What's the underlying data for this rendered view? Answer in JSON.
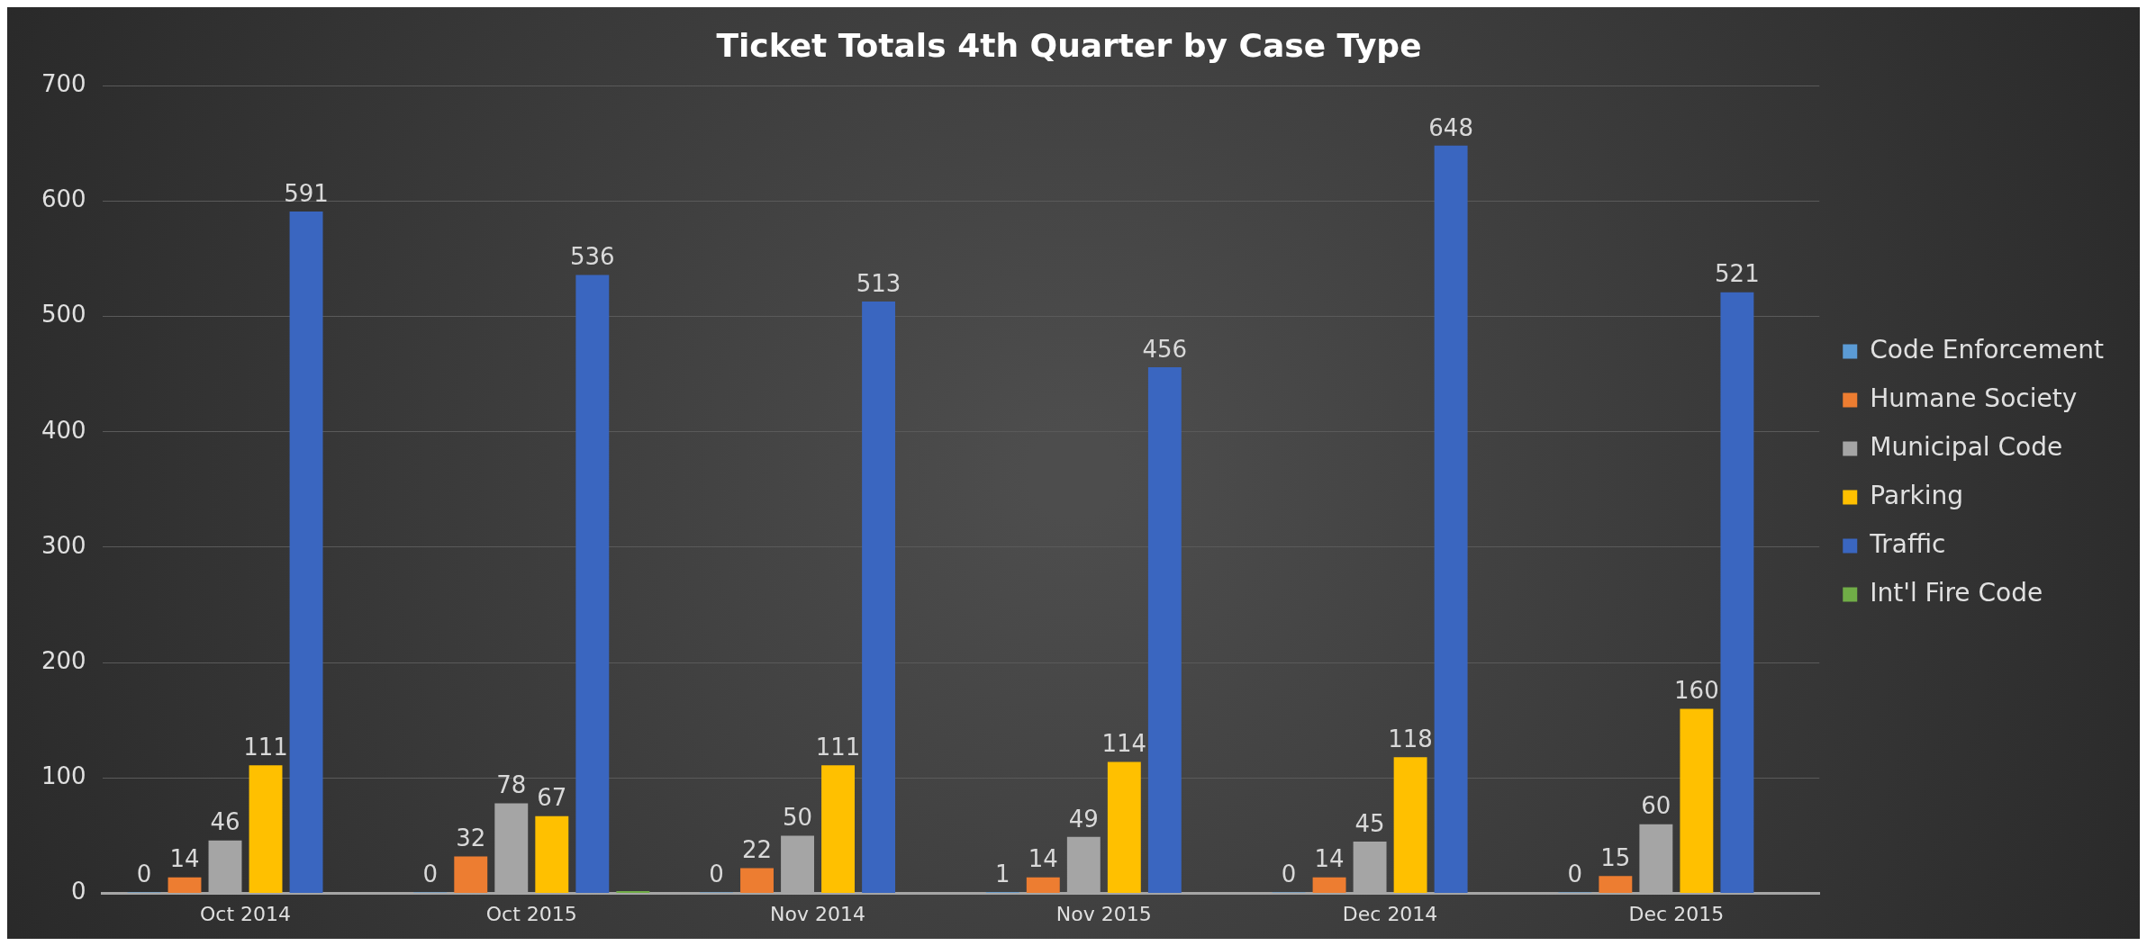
{
  "chart_data": {
    "type": "bar",
    "title": "Ticket Totals 4th Quarter by Case Type",
    "categories": [
      "Oct 2014",
      "Oct 2015",
      "Nov 2014",
      "Nov 2015",
      "Dec 2014",
      "Dec 2015"
    ],
    "series": [
      {
        "name": "Code Enforcement",
        "color": "#5b9bd5",
        "values": [
          0,
          0,
          0,
          1,
          0,
          0
        ],
        "value_labels": [
          "0",
          "0",
          "0",
          "1",
          "0",
          "0"
        ]
      },
      {
        "name": "Humane Society",
        "color": "#ed7d31",
        "values": [
          14,
          32,
          22,
          14,
          14,
          15
        ],
        "value_labels": [
          "14",
          "32",
          "22",
          "14",
          "14",
          "15"
        ]
      },
      {
        "name": "Municipal Code",
        "color": "#a5a5a5",
        "values": [
          46,
          78,
          50,
          49,
          45,
          60
        ],
        "value_labels": [
          "46",
          "78",
          "50",
          "49",
          "45",
          "60"
        ]
      },
      {
        "name": "Parking",
        "color": "#ffc000",
        "values": [
          111,
          67,
          111,
          114,
          118,
          160
        ],
        "value_labels": [
          "111",
          "67",
          "111",
          "114",
          "118",
          "160"
        ]
      },
      {
        "name": "Traffic",
        "color": "#3a66c0",
        "values": [
          591,
          536,
          513,
          456,
          648,
          521
        ],
        "value_labels": [
          "591",
          "536",
          "513",
          "456",
          "648",
          "521"
        ]
      },
      {
        "name": "Int'l Fire Code",
        "color": "#70ad47",
        "values": [
          null,
          2,
          null,
          null,
          null,
          null
        ],
        "value_labels": [
          null,
          null,
          null,
          null,
          null,
          null
        ]
      }
    ],
    "ylim": [
      0,
      700
    ],
    "yticks": [
      0,
      100,
      200,
      300,
      400,
      500,
      600,
      700
    ],
    "grid": "y",
    "legend": "right"
  }
}
